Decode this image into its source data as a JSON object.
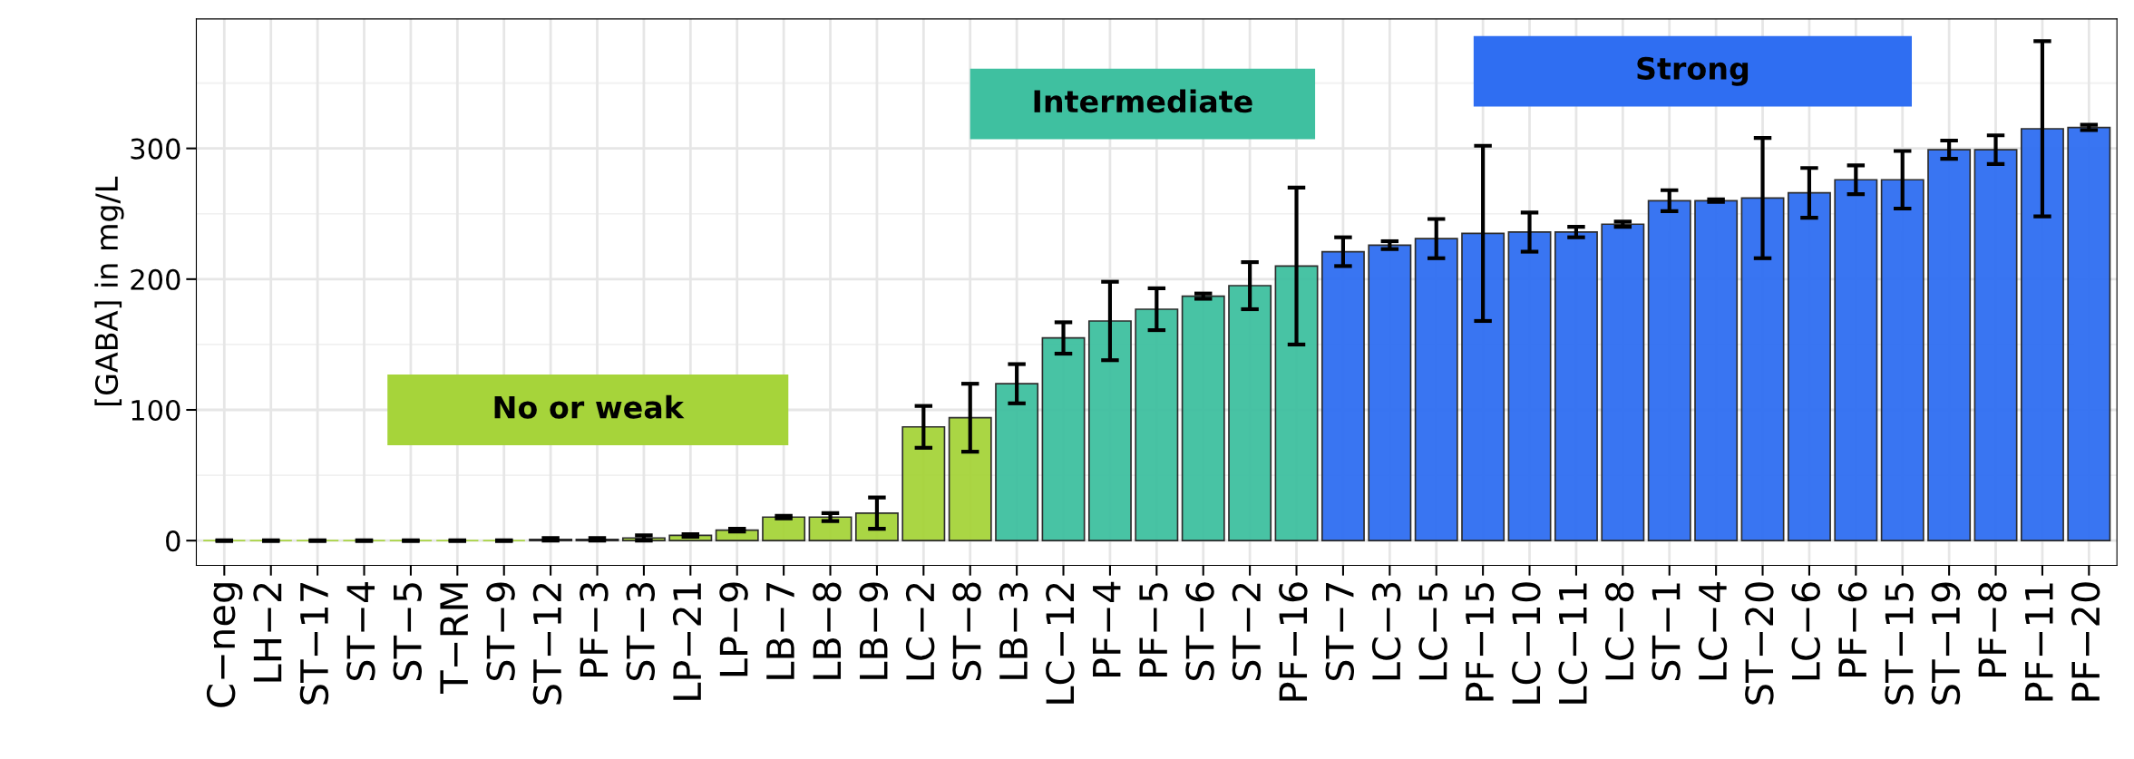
{
  "chart_data": {
    "type": "bar",
    "ylabel": "[GABA] in mg/L",
    "categories": [
      "C−neg",
      "LH−2",
      "ST−17",
      "ST−4",
      "ST−5",
      "T−RM",
      "ST−9",
      "ST−12",
      "PF−3",
      "ST−3",
      "LP−21",
      "LP−9",
      "LB−7",
      "LB−8",
      "LB−9",
      "LC−2",
      "ST−8",
      "LB−3",
      "LC−12",
      "PF−4",
      "PF−5",
      "ST−6",
      "ST−2",
      "PF−16",
      "ST−7",
      "LC−3",
      "LC−5",
      "PF−15",
      "LC−10",
      "LC−11",
      "LC−8",
      "ST−1",
      "LC−4",
      "ST−20",
      "LC−6",
      "PF−6",
      "ST−15",
      "ST−19",
      "PF−8",
      "PF−11",
      "PF−20"
    ],
    "values": [
      0,
      0,
      0,
      0,
      0,
      0,
      0,
      1,
      1,
      2,
      4,
      8,
      18,
      18,
      21,
      87,
      94,
      120,
      155,
      168,
      177,
      187,
      195,
      210,
      221,
      226,
      231,
      235,
      236,
      236,
      242,
      260,
      260,
      262,
      266,
      276,
      276,
      299,
      299,
      315,
      316
    ],
    "errors": [
      0.3,
      0.3,
      0.3,
      0.3,
      0.3,
      0.3,
      0.3,
      1,
      1,
      2,
      1,
      1,
      1,
      3,
      12,
      16,
      26,
      15,
      12,
      30,
      16,
      2,
      18,
      60,
      11,
      3,
      15,
      67,
      15,
      4,
      2,
      8,
      1,
      46,
      19,
      11,
      22,
      7,
      11,
      67,
      2
    ],
    "colors": [
      "#a6d43a",
      "#a6d43a",
      "#a6d43a",
      "#a6d43a",
      "#a6d43a",
      "#a6d43a",
      "#a6d43a",
      "#a6d43a",
      "#a6d43a",
      "#a6d43a",
      "#a6d43a",
      "#a6d43a",
      "#a6d43a",
      "#a6d43a",
      "#a6d43a",
      "#a6d43a",
      "#a6d43a",
      "#3fc0a0",
      "#3fc0a0",
      "#3fc0a0",
      "#3fc0a0",
      "#3fc0a0",
      "#3fc0a0",
      "#3fc0a0",
      "#2f6ef2",
      "#2f6ef2",
      "#2f6ef2",
      "#2f6ef2",
      "#2f6ef2",
      "#2f6ef2",
      "#2f6ef2",
      "#2f6ef2",
      "#2f6ef2",
      "#2f6ef2",
      "#2f6ef2",
      "#2f6ef2",
      "#2f6ef2",
      "#2f6ef2",
      "#2f6ef2",
      "#2f6ef2",
      "#2f6ef2"
    ],
    "annotations": [
      "No or weak",
      "Intermediate",
      "Strong"
    ],
    "ylim": [
      -19,
      399
    ],
    "yticks": [
      0,
      100,
      200,
      300
    ],
    "grid": true
  }
}
